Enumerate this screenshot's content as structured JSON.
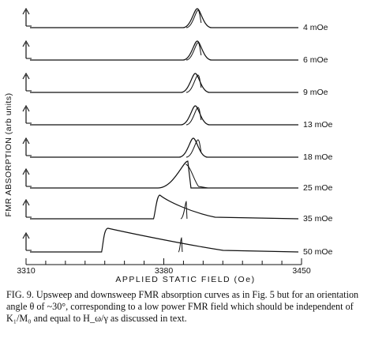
{
  "chart_data": {
    "type": "line",
    "ylabel": "FMR ABSORPTION (arb units)",
    "xlabel": "APPLIED STATIC FIELD (Oe)",
    "x_ticks": [
      "3310",
      "3380",
      "3450"
    ],
    "xlim": [
      3310,
      3450
    ],
    "grid": false,
    "legend": "none",
    "series": [
      {
        "name": "4 mOe",
        "resonance_field": 3397,
        "sweep_up_jump": 3397
      },
      {
        "name": "6 mOe",
        "resonance_field": 3397,
        "sweep_up_jump": 3397
      },
      {
        "name": "9 mOe",
        "resonance_field": 3396,
        "sweep_up_jump": 3397
      },
      {
        "name": "13 mOe",
        "resonance_field": 3396,
        "sweep_up_jump": 3397
      },
      {
        "name": "18 mOe",
        "resonance_field": 3395,
        "sweep_up_jump": 3397
      },
      {
        "name": "25 mOe",
        "resonance_field": 3393,
        "sweep_up_jump": 3392
      },
      {
        "name": "35 mOe",
        "resonance_field": 3378,
        "sweep_up_jump": 3391
      },
      {
        "name": "50 mOe",
        "resonance_field": 3350,
        "sweep_up_jump": 3389
      }
    ]
  },
  "caption": {
    "label": "FIG. 9.",
    "text": "Upsweep and downsweep FMR absorption curves as in Fig. 5 but for an orientation angle θ of ~30°, corresponding to a low power FMR field which should be independent of K₁/M₀ and equal to H_ω/γ as discussed in text."
  }
}
